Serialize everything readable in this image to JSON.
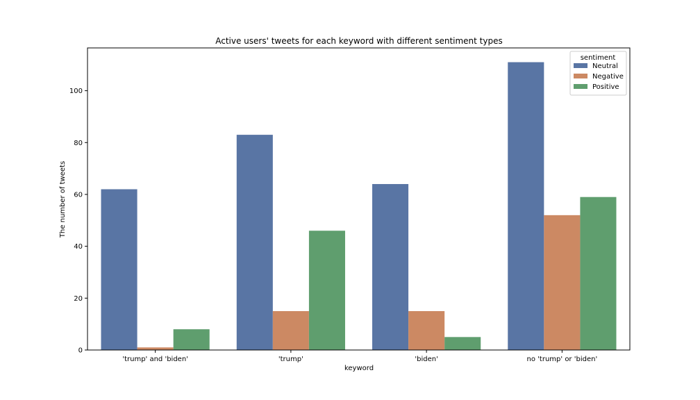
{
  "chart_data": {
    "type": "bar",
    "title": "Active users' tweets for each keyword with different sentiment types",
    "xlabel": "keyword",
    "ylabel": "The number of tweets",
    "categories": [
      "'trump' and 'biden'",
      "'trump'",
      "'biden'",
      "no 'trump' or 'biden'"
    ],
    "series": [
      {
        "name": "Neutral",
        "values": [
          62,
          83,
          64,
          111
        ],
        "color": "#5975a4"
      },
      {
        "name": "Negative",
        "values": [
          1,
          15,
          15,
          52
        ],
        "color": "#cc8963"
      },
      {
        "name": "Positive",
        "values": [
          8,
          46,
          5,
          59
        ],
        "color": "#5f9e6e"
      }
    ],
    "ylim": [
      0,
      116.5
    ],
    "yticks": [
      0,
      20,
      40,
      60,
      80,
      100
    ],
    "grid": false,
    "legend": {
      "title": "sentiment",
      "position": "top-right"
    }
  }
}
